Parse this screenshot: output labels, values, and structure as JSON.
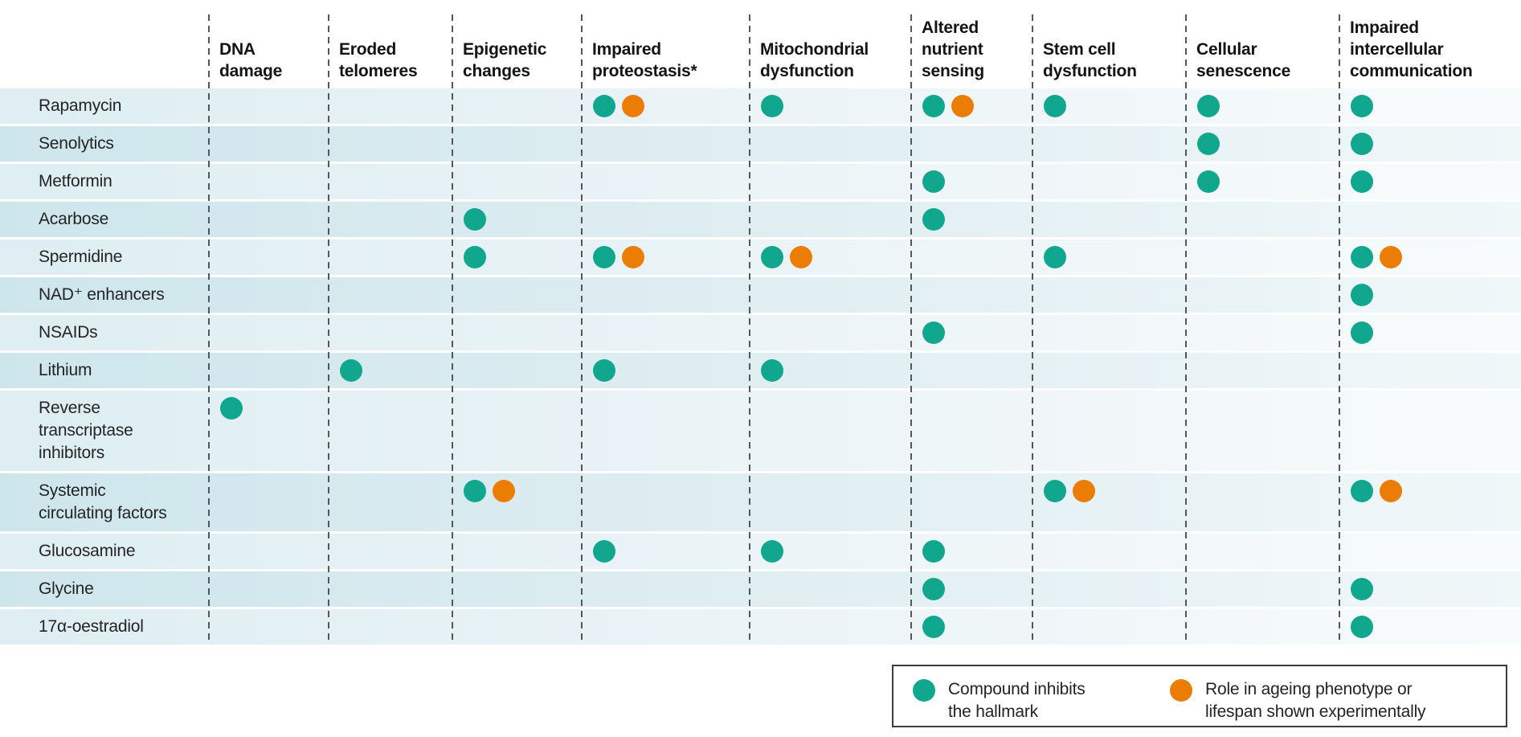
{
  "colors": {
    "teal": "#10A78E",
    "orange": "#EB7C04",
    "row_light": "#DEEEF2",
    "row_dark": "#CDE6EC",
    "divider": "#565656"
  },
  "chart_data": {
    "type": "table",
    "columns": [
      {
        "id": "dna_damage",
        "label": "DNA\ndamage"
      },
      {
        "id": "eroded_telomeres",
        "label": "Eroded\ntelomeres"
      },
      {
        "id": "epigenetic_changes",
        "label": "Epigenetic\nchanges"
      },
      {
        "id": "impaired_proteostasis",
        "label": "Impaired\nproteostasis*"
      },
      {
        "id": "mitochondrial_dysfunction",
        "label": "Mitochondrial\ndysfunction"
      },
      {
        "id": "altered_nutrient_sensing",
        "label": "Altered\nnutrient\nsensing"
      },
      {
        "id": "stem_cell_dysfunction",
        "label": "Stem cell\ndysfunction"
      },
      {
        "id": "cellular_senescence",
        "label": "Cellular\nsenescence"
      },
      {
        "id": "impaired_intercellular_communication",
        "label": "Impaired\nintercellular\ncommunication"
      }
    ],
    "rows": [
      {
        "label": "Rapamycin",
        "cells": {
          "impaired_proteostasis": [
            "inhibits",
            "experimental"
          ],
          "mitochondrial_dysfunction": [
            "inhibits"
          ],
          "altered_nutrient_sensing": [
            "inhibits",
            "experimental"
          ],
          "stem_cell_dysfunction": [
            "inhibits"
          ],
          "cellular_senescence": [
            "inhibits"
          ],
          "impaired_intercellular_communication": [
            "inhibits"
          ]
        }
      },
      {
        "label": "Senolytics",
        "cells": {
          "cellular_senescence": [
            "inhibits"
          ],
          "impaired_intercellular_communication": [
            "inhibits"
          ]
        }
      },
      {
        "label": "Metformin",
        "cells": {
          "altered_nutrient_sensing": [
            "inhibits"
          ],
          "cellular_senescence": [
            "inhibits"
          ],
          "impaired_intercellular_communication": [
            "inhibits"
          ]
        }
      },
      {
        "label": "Acarbose",
        "cells": {
          "epigenetic_changes": [
            "inhibits"
          ],
          "altered_nutrient_sensing": [
            "inhibits"
          ]
        }
      },
      {
        "label": "Spermidine",
        "cells": {
          "epigenetic_changes": [
            "inhibits"
          ],
          "impaired_proteostasis": [
            "inhibits",
            "experimental"
          ],
          "mitochondrial_dysfunction": [
            "inhibits",
            "experimental"
          ],
          "stem_cell_dysfunction": [
            "inhibits"
          ],
          "impaired_intercellular_communication": [
            "inhibits",
            "experimental"
          ]
        }
      },
      {
        "label": "NAD⁺ enhancers",
        "cells": {
          "impaired_intercellular_communication": [
            "inhibits"
          ]
        }
      },
      {
        "label": "NSAIDs",
        "cells": {
          "altered_nutrient_sensing": [
            "inhibits"
          ],
          "impaired_intercellular_communication": [
            "inhibits"
          ]
        }
      },
      {
        "label": "Lithium",
        "cells": {
          "eroded_telomeres": [
            "inhibits"
          ],
          "impaired_proteostasis": [
            "inhibits"
          ],
          "mitochondrial_dysfunction": [
            "inhibits"
          ]
        }
      },
      {
        "label": "Reverse\ntranscriptase\ninhibitors",
        "cells": {
          "dna_damage": [
            "inhibits"
          ]
        }
      },
      {
        "label": "Systemic\ncirculating factors",
        "cells": {
          "epigenetic_changes": [
            "inhibits",
            "experimental"
          ],
          "stem_cell_dysfunction": [
            "inhibits",
            "experimental"
          ],
          "impaired_intercellular_communication": [
            "inhibits",
            "experimental"
          ]
        }
      },
      {
        "label": "Glucosamine",
        "cells": {
          "impaired_proteostasis": [
            "inhibits"
          ],
          "mitochondrial_dysfunction": [
            "inhibits"
          ],
          "altered_nutrient_sensing": [
            "inhibits"
          ]
        }
      },
      {
        "label": "Glycine",
        "cells": {
          "altered_nutrient_sensing": [
            "inhibits"
          ],
          "impaired_intercellular_communication": [
            "inhibits"
          ]
        }
      },
      {
        "label": "17α-oestradiol",
        "cells": {
          "altered_nutrient_sensing": [
            "inhibits"
          ],
          "impaired_intercellular_communication": [
            "inhibits"
          ]
        }
      }
    ]
  },
  "legend": {
    "items": [
      {
        "color": "teal",
        "label": "Compound inhibits\nthe hallmark"
      },
      {
        "color": "orange",
        "label": "Role in ageing phenotype or\nlifespan shown experimentally"
      }
    ]
  }
}
